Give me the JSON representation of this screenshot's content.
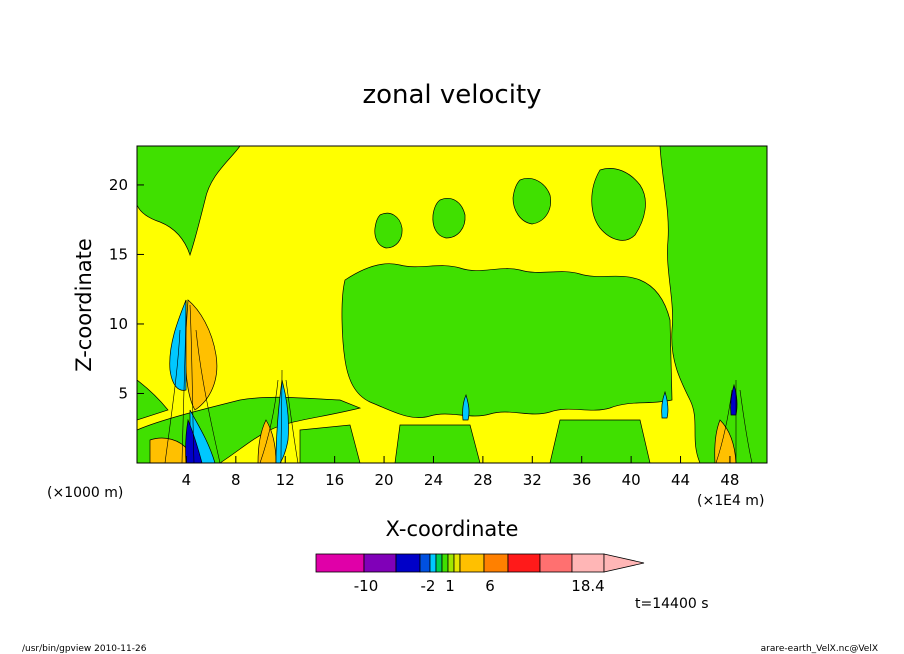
{
  "chart_data": {
    "type": "heatmap",
    "title": "zonal velocity",
    "xlabel": "X-coordinate",
    "ylabel": "Z-coordinate",
    "x_unit_left": "(×1000 m)",
    "x_unit_right": "(×1E4 m)",
    "xlim": [
      0,
      51
    ],
    "ylim": [
      0,
      22.8
    ],
    "xticks": [
      "4",
      "8",
      "12",
      "16",
      "20",
      "24",
      "28",
      "32",
      "36",
      "40",
      "44",
      "48"
    ],
    "yticks": [
      "5",
      "10",
      "15",
      "20"
    ],
    "colorbar": {
      "labels": [
        "-10",
        "-2",
        "1",
        "6",
        "18.4"
      ],
      "colors": [
        "#e000a8",
        "#8000b8",
        "#0000c8",
        "#0050e0",
        "#00c8ff",
        "#00d050",
        "#40e000",
        "#a0e600",
        "#e6e600",
        "#ffc000",
        "#ff8000",
        "#ff1a1a",
        "#ff7070",
        "#ffb6b6"
      ]
    },
    "background_fill": "#ffff00",
    "field": [
      {
        "x": 2.0,
        "z": 19.0,
        "level": "low"
      },
      {
        "x": 4.2,
        "z": 6.0,
        "level": "cyan"
      },
      {
        "x": 4.8,
        "z": 3.5,
        "level": "blue"
      },
      {
        "x": 5.5,
        "z": 7.5,
        "level": "orange"
      },
      {
        "x": 12.0,
        "z": 3.5,
        "level": "cyan"
      },
      {
        "x": 26.8,
        "z": 4.5,
        "level": "cyan"
      },
      {
        "x": 42.8,
        "z": 4.5,
        "level": "cyan"
      },
      {
        "x": 48.2,
        "z": 4.0,
        "level": "blue"
      }
    ],
    "annotation": "t=14400 s"
  },
  "footer": {
    "left": "/usr/bin/gpview   2010-11-26",
    "right": "arare-earth_VelX.nc@VelX"
  }
}
